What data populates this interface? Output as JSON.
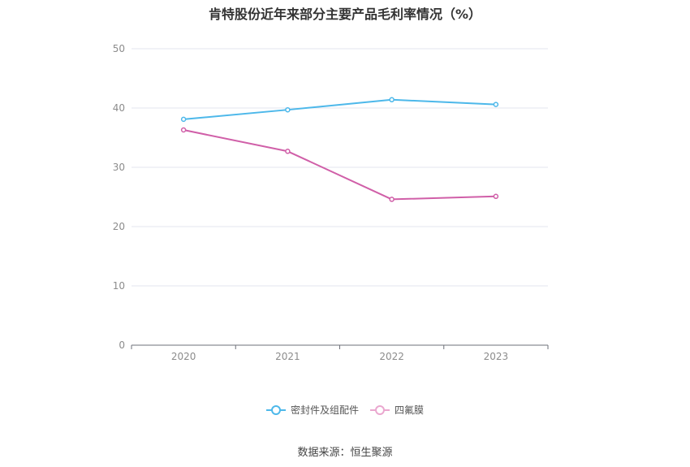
{
  "chart_data": {
    "type": "line",
    "title": "肯特股份近年来部分主要产品毛利率情况（%）",
    "categories": [
      "2020",
      "2021",
      "2022",
      "2023"
    ],
    "ylim": [
      0,
      50
    ],
    "yticks": [
      0,
      10,
      20,
      30,
      40,
      50
    ],
    "grid": true,
    "legend_position": "bottom",
    "series": [
      {
        "name": "密封件及组配件",
        "color": "#4db8ea",
        "values": [
          38.1,
          39.7,
          41.4,
          40.6
        ]
      },
      {
        "name": "四氟膜",
        "color": "#d05fa8",
        "legend_color": "#eaa7cf",
        "values": [
          36.3,
          32.7,
          24.6,
          25.1
        ]
      }
    ]
  },
  "source": "数据来源：恒生聚源"
}
